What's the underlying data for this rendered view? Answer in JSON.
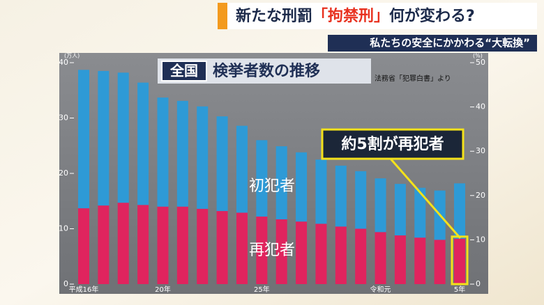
{
  "header": {
    "headline": [
      "新たな刑罰",
      "「拘禁刑」",
      "何が変わる?"
    ],
    "subheadline": "私たちの安全にかかわる“大転換”"
  },
  "chart_data": {
    "type": "bar",
    "stacked": true,
    "title_prefix": "全国",
    "title": "検挙者数の推移",
    "source": "法務省「犯罪白書」より",
    "y_unit": "(万人)",
    "y2_unit": "(%)",
    "annotation": "約5割が再犯者",
    "categories": [
      "平成16年",
      null,
      null,
      null,
      "20年",
      null,
      null,
      null,
      null,
      "25年",
      null,
      null,
      null,
      null,
      null,
      "令和元",
      null,
      null,
      null,
      "5年"
    ],
    "series": [
      {
        "name": "再犯者",
        "color": "#e0245e",
        "values": [
          13.7,
          14.2,
          14.7,
          14.3,
          14.0,
          14.0,
          13.6,
          13.2,
          12.9,
          12.2,
          11.7,
          11.3,
          10.9,
          10.4,
          10.0,
          9.4,
          8.8,
          8.4,
          8.0,
          8.2
        ]
      },
      {
        "name": "初犯者",
        "color": "#2e9ad6",
        "values": [
          25.0,
          24.3,
          23.5,
          22.1,
          19.7,
          19.1,
          18.5,
          17.1,
          15.7,
          13.8,
          13.2,
          12.5,
          11.6,
          11.0,
          10.4,
          9.7,
          9.3,
          9.0,
          8.9,
          10.0
        ]
      }
    ],
    "ylim": [
      0,
      40
    ],
    "yticks": [
      0,
      10,
      20,
      30,
      40
    ],
    "y2lim": [
      0,
      50
    ],
    "y2ticks": [
      0,
      10,
      20,
      30,
      40,
      50
    ]
  }
}
